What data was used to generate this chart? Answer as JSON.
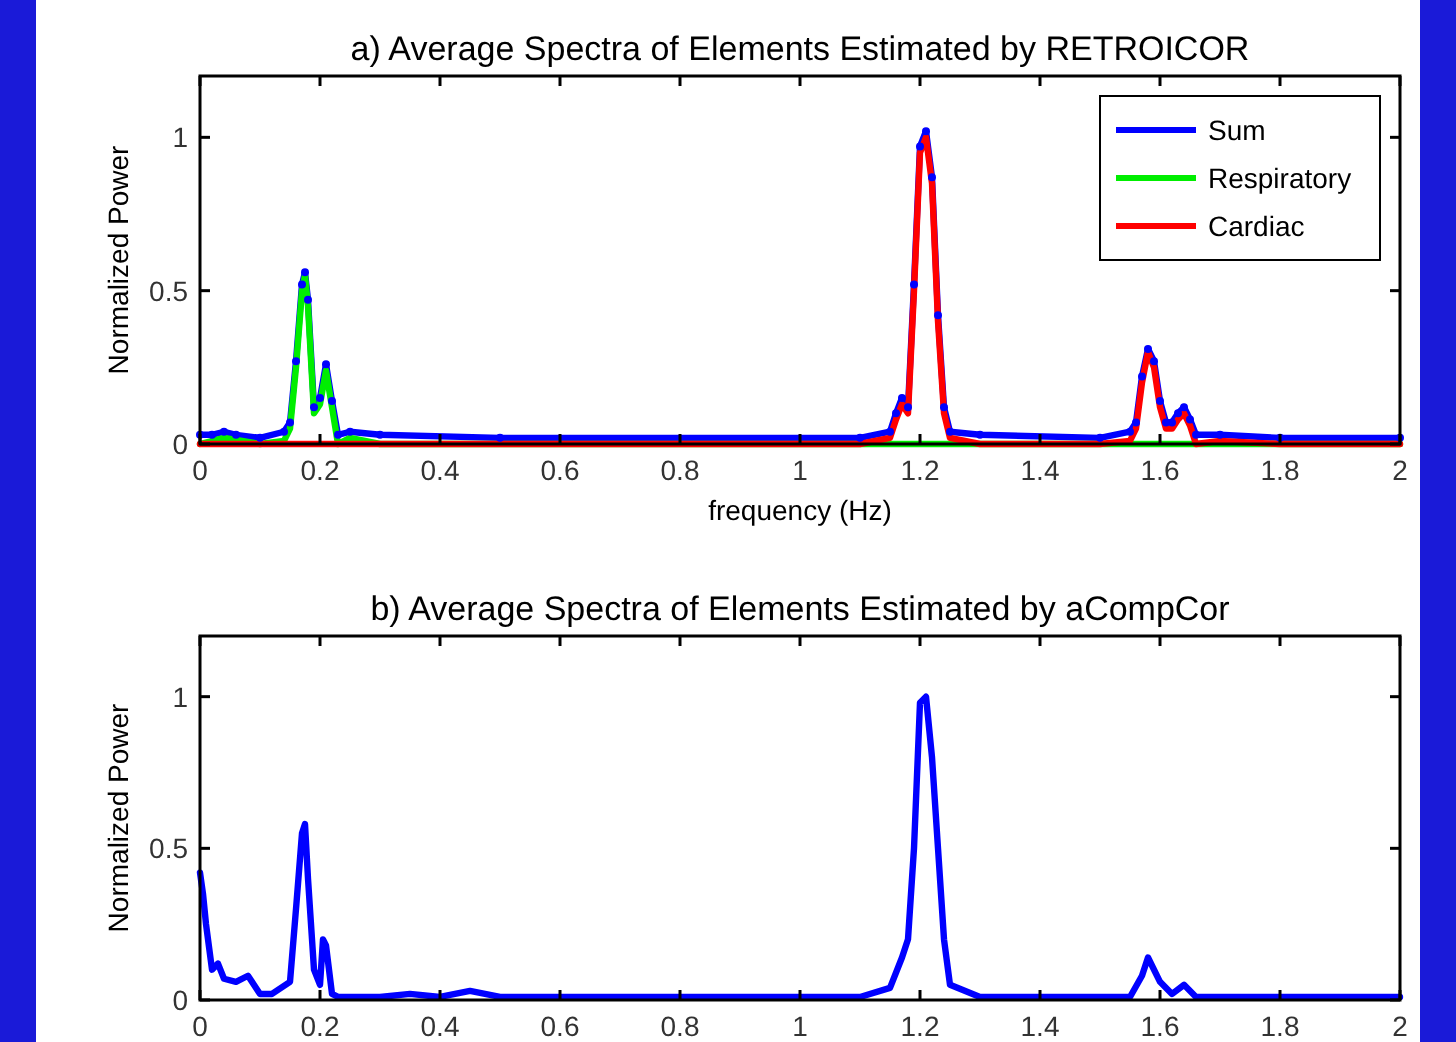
{
  "chart_data": [
    {
      "type": "line",
      "title": "a) Average Spectra of Elements Estimated by RETROICOR",
      "xlabel": "frequency (Hz)",
      "ylabel": "Normalized Power",
      "xlim": [
        0,
        2
      ],
      "ylim": [
        0,
        1.2
      ],
      "xticks": [
        0,
        0.2,
        0.4,
        0.6,
        0.8,
        1,
        1.2,
        1.4,
        1.6,
        1.8,
        2
      ],
      "yticks": [
        0,
        0.5,
        1
      ],
      "legend": "top right",
      "series": [
        {
          "name": "Sum",
          "color": "#0000ff",
          "marker": "circle",
          "x": [
            0,
            0.02,
            0.04,
            0.06,
            0.1,
            0.14,
            0.15,
            0.16,
            0.17,
            0.175,
            0.18,
            0.19,
            0.2,
            0.21,
            0.22,
            0.23,
            0.25,
            0.3,
            0.5,
            1.1,
            1.15,
            1.16,
            1.17,
            1.18,
            1.19,
            1.2,
            1.21,
            1.22,
            1.23,
            1.24,
            1.25,
            1.3,
            1.5,
            1.55,
            1.56,
            1.57,
            1.58,
            1.59,
            1.6,
            1.61,
            1.62,
            1.63,
            1.64,
            1.65,
            1.66,
            1.7,
            1.8,
            2
          ],
          "values": [
            0.03,
            0.03,
            0.04,
            0.03,
            0.02,
            0.04,
            0.07,
            0.27,
            0.52,
            0.56,
            0.47,
            0.12,
            0.15,
            0.26,
            0.14,
            0.03,
            0.04,
            0.03,
            0.02,
            0.02,
            0.04,
            0.1,
            0.15,
            0.12,
            0.52,
            0.97,
            1.02,
            0.87,
            0.42,
            0.12,
            0.04,
            0.03,
            0.02,
            0.04,
            0.07,
            0.22,
            0.31,
            0.27,
            0.14,
            0.07,
            0.07,
            0.1,
            0.12,
            0.08,
            0.03,
            0.03,
            0.02,
            0.02
          ]
        },
        {
          "name": "Respiratory",
          "color": "#00ee00",
          "x": [
            0,
            0.04,
            0.1,
            0.14,
            0.15,
            0.16,
            0.17,
            0.175,
            0.18,
            0.19,
            0.2,
            0.21,
            0.22,
            0.23,
            0.25,
            0.3,
            0.5,
            2
          ],
          "values": [
            0,
            0.02,
            0,
            0.01,
            0.05,
            0.25,
            0.5,
            0.55,
            0.45,
            0.1,
            0.13,
            0.24,
            0.12,
            0,
            0.02,
            0,
            0,
            0
          ]
        },
        {
          "name": "Cardiac",
          "color": "#ff0000",
          "x": [
            0,
            1.1,
            1.15,
            1.16,
            1.17,
            1.18,
            1.19,
            1.2,
            1.21,
            1.22,
            1.23,
            1.24,
            1.25,
            1.3,
            1.5,
            1.55,
            1.56,
            1.57,
            1.58,
            1.59,
            1.6,
            1.61,
            1.62,
            1.63,
            1.64,
            1.65,
            1.66,
            1.7,
            1.8,
            2
          ],
          "values": [
            0,
            0,
            0.02,
            0.08,
            0.13,
            0.1,
            0.5,
            0.95,
            1.0,
            0.85,
            0.4,
            0.1,
            0.02,
            0,
            0,
            0.01,
            0.05,
            0.2,
            0.3,
            0.25,
            0.12,
            0.05,
            0.05,
            0.08,
            0.1,
            0.06,
            0,
            0.01,
            0,
            0
          ]
        }
      ]
    },
    {
      "type": "line",
      "title": "b) Average Spectra of Elements Estimated by aCompCor",
      "ylabel": "Normalized Power",
      "xlim": [
        0,
        2
      ],
      "ylim": [
        0,
        1.2
      ],
      "xticks": [
        0,
        0.2,
        0.4,
        0.6,
        0.8,
        1,
        1.2,
        1.4,
        1.6,
        1.8,
        2
      ],
      "yticks": [
        0,
        0.5,
        1
      ],
      "series": [
        {
          "color": "#0000ff",
          "x": [
            0,
            0.005,
            0.01,
            0.02,
            0.03,
            0.04,
            0.06,
            0.08,
            0.1,
            0.12,
            0.15,
            0.16,
            0.17,
            0.175,
            0.18,
            0.19,
            0.2,
            0.205,
            0.21,
            0.22,
            0.23,
            0.3,
            0.35,
            0.4,
            0.45,
            0.5,
            0.8,
            1.1,
            1.15,
            1.17,
            1.18,
            1.19,
            1.2,
            1.21,
            1.22,
            1.23,
            1.24,
            1.25,
            1.3,
            1.55,
            1.57,
            1.58,
            1.6,
            1.62,
            1.64,
            1.66,
            1.7,
            2
          ],
          "values": [
            0.42,
            0.35,
            0.25,
            0.1,
            0.12,
            0.07,
            0.06,
            0.08,
            0.02,
            0.02,
            0.06,
            0.3,
            0.55,
            0.58,
            0.4,
            0.1,
            0.05,
            0.2,
            0.18,
            0.02,
            0.01,
            0.01,
            0.02,
            0.01,
            0.03,
            0.01,
            0.01,
            0.01,
            0.04,
            0.14,
            0.2,
            0.5,
            0.98,
            1.0,
            0.8,
            0.5,
            0.2,
            0.05,
            0.01,
            0.01,
            0.08,
            0.14,
            0.06,
            0.02,
            0.05,
            0.01,
            0.01,
            0.01
          ]
        }
      ]
    }
  ]
}
